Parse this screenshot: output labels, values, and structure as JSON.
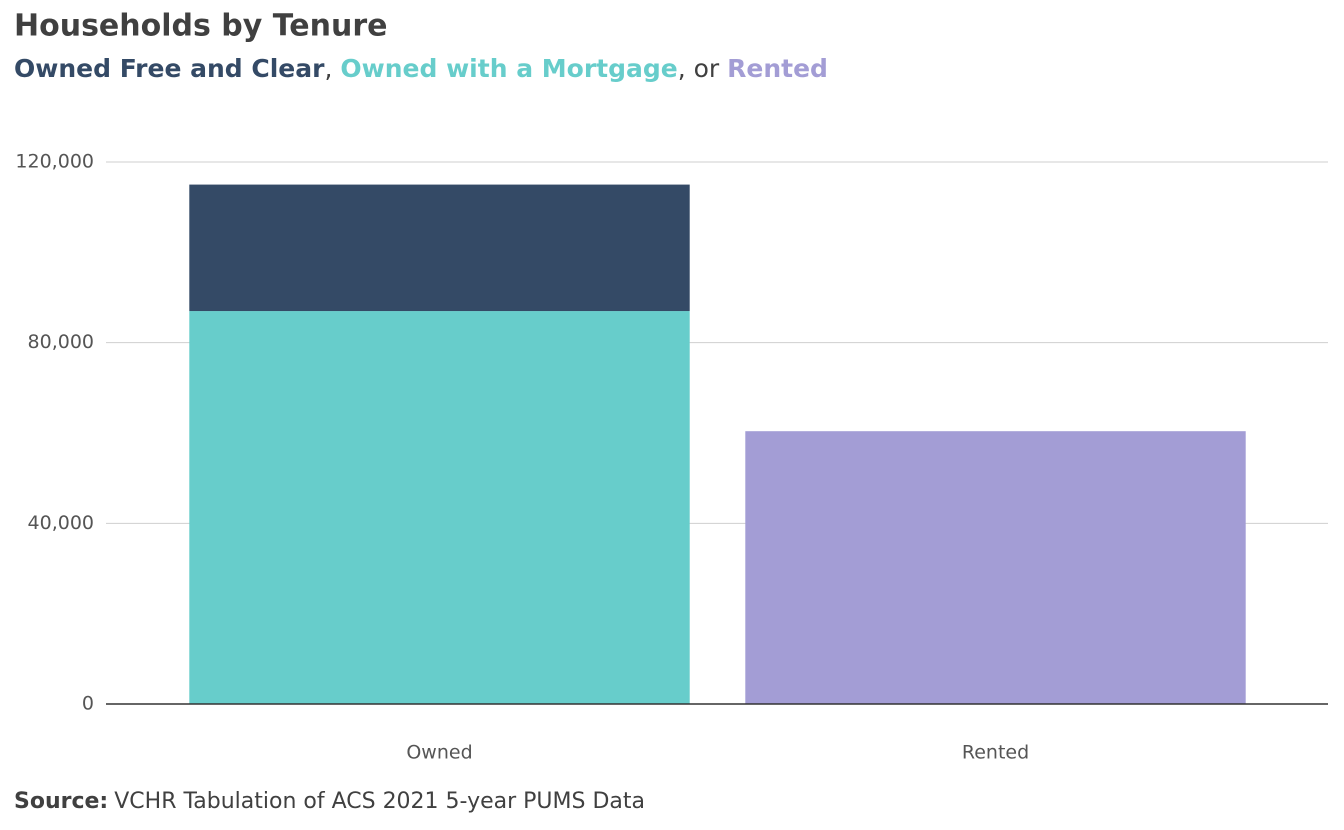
{
  "chart_data": {
    "type": "stacked_bar",
    "title": "Households by Tenure",
    "legend_separators": [
      ", ",
      ", or "
    ],
    "categories": [
      "Owned",
      "Rented"
    ],
    "series": [
      {
        "name": "Owned Free and Clear",
        "color": "#344a66",
        "values": [
          28000,
          null
        ]
      },
      {
        "name": "Owned with a Mortgage",
        "color": "#67cdcb",
        "values": [
          87000,
          null
        ]
      },
      {
        "name": "Rented",
        "color": "#a39dd5",
        "values": [
          null,
          60400
        ]
      }
    ],
    "ylim": [
      0,
      120000
    ],
    "yticks": [
      0,
      {
        "value": 40000,
        "label": "40,000"
      },
      {
        "value": 80000,
        "label": "80,000"
      },
      {
        "value": 120000,
        "label": "120,000"
      }
    ],
    "grid": true,
    "source_label": "Source:",
    "source": "VCHR Tabulation of ACS 2021 5-year PUMS Data"
  }
}
